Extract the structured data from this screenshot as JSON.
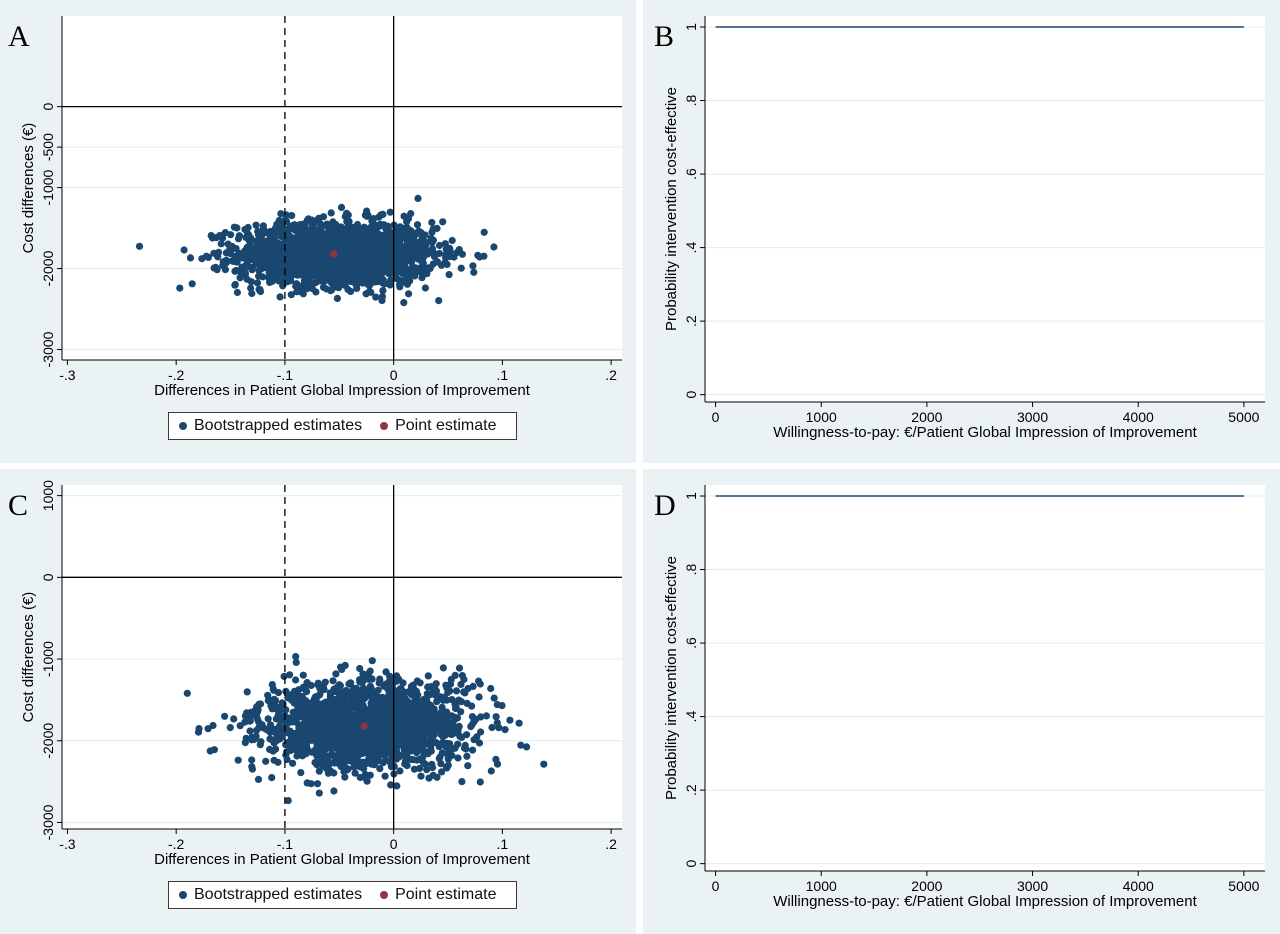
{
  "colors": {
    "panel_bg": "#eaf2f3",
    "plot_bg": "#ffffff",
    "grid": "#e3ecee",
    "bootstrap": "#1a476f",
    "point": "#90353b",
    "curve": "#1a476f"
  },
  "legend": {
    "bootstrap_label": "Bootstrapped estimates",
    "point_label": "Point estimate"
  },
  "chart_data": [
    {
      "panel": "A",
      "type": "scatter",
      "title": "",
      "xlabel": "Differences in Patient Global Impression of Improvement",
      "ylabel": "Cost differences (€)",
      "xlim": [
        -0.305,
        0.21
      ],
      "ylim": [
        -3130,
        1120
      ],
      "x_ticks": [
        -0.3,
        -0.2,
        -0.1,
        0,
        0.1,
        0.2
      ],
      "x_tick_labels": [
        "-.3",
        "-.2",
        "-.1",
        "0",
        ".1",
        ".2"
      ],
      "y_ticks": [
        -3000,
        -2000,
        -1000,
        -500,
        0
      ],
      "y_tick_labels": [
        "-3000",
        "-2000",
        "-1000",
        "-500",
        "0"
      ],
      "grid": true,
      "reference_lines": {
        "x_dashed": -0.1,
        "x_solid": 0,
        "y_solid": 0
      },
      "bootstrap_cloud": {
        "center": [
          -0.052,
          -1820
        ],
        "sd": [
          0.045,
          200
        ],
        "x_range": [
          -0.262,
          0.118
        ],
        "y_range": [
          -2560,
          -970
        ]
      },
      "point_estimate": {
        "x": -0.055,
        "y": -1820
      },
      "legend_position": "bottom"
    },
    {
      "panel": "B",
      "type": "line",
      "title": "",
      "xlabel": "Willingness-to-pay: €/Patient Global Impression of Improvement",
      "ylabel": "Probability intervention cost-effective",
      "xlim": [
        -100,
        5200
      ],
      "ylim": [
        -0.02,
        1.03
      ],
      "x_ticks": [
        0,
        1000,
        2000,
        3000,
        4000,
        5000
      ],
      "x_tick_labels": [
        "0",
        "1000",
        "2000",
        "3000",
        "4000",
        "5000"
      ],
      "y_ticks": [
        0,
        0.2,
        0.4,
        0.6,
        0.8,
        1
      ],
      "y_tick_labels": [
        "0",
        ".2",
        ".4",
        ".6",
        ".8",
        "1"
      ],
      "grid": true,
      "x": [
        0,
        5000
      ],
      "y": [
        1,
        1
      ]
    },
    {
      "panel": "C",
      "type": "scatter",
      "title": "",
      "xlabel": "Differences in Patient Global Impression of Improvement",
      "ylabel": "Cost differences (€)",
      "xlim": [
        -0.305,
        0.21
      ],
      "ylim": [
        -3080,
        1130
      ],
      "x_ticks": [
        -0.3,
        -0.2,
        -0.1,
        0,
        0.1,
        0.2
      ],
      "x_tick_labels": [
        "-.3",
        "-.2",
        "-.1",
        "0",
        ".1",
        ".2"
      ],
      "y_ticks": [
        -3000,
        -2000,
        -1000,
        0,
        1000
      ],
      "y_tick_labels": [
        "-3000",
        "-2000",
        "-1000",
        "0",
        "1000"
      ],
      "grid": true,
      "reference_lines": {
        "x_dashed": -0.1,
        "x_solid": 0,
        "y_solid": 0
      },
      "bootstrap_cloud": {
        "center": [
          -0.027,
          -1820
        ],
        "sd": [
          0.048,
          270
        ],
        "x_range": [
          -0.225,
          0.148
        ],
        "y_range": [
          -2990,
          -740
        ]
      },
      "point_estimate": {
        "x": -0.027,
        "y": -1820
      },
      "legend_position": "bottom"
    },
    {
      "panel": "D",
      "type": "line",
      "title": "",
      "xlabel": "Willingness-to-pay: €/Patient Global Impression of Improvement",
      "ylabel": "Probability intervention cost-effective",
      "xlim": [
        -100,
        5200
      ],
      "ylim": [
        -0.02,
        1.03
      ],
      "x_ticks": [
        0,
        1000,
        2000,
        3000,
        4000,
        5000
      ],
      "x_tick_labels": [
        "0",
        "1000",
        "2000",
        "3000",
        "4000",
        "5000"
      ],
      "y_ticks": [
        0,
        0.2,
        0.4,
        0.6,
        0.8,
        1
      ],
      "y_tick_labels": [
        "0",
        ".2",
        ".4",
        ".6",
        ".8",
        "1"
      ],
      "grid": true,
      "x": [
        0,
        5000
      ],
      "y": [
        1,
        1
      ]
    }
  ]
}
